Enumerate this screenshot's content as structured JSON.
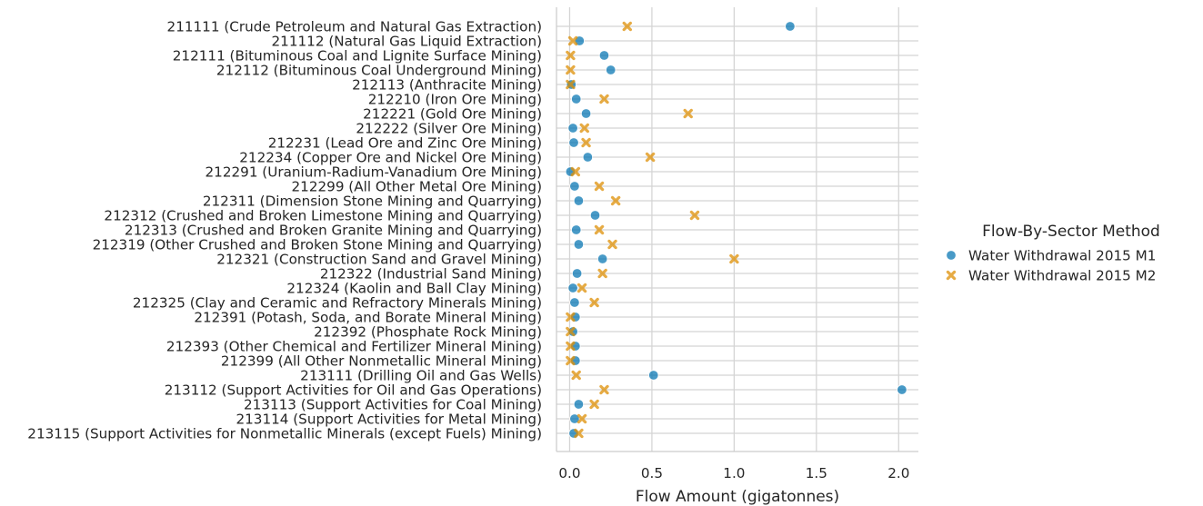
{
  "chart_data": {
    "type": "scatter",
    "orientation": "horizontal",
    "xlabel": "Flow Amount (gigatonnes)",
    "xlim": [
      -0.08,
      2.12
    ],
    "xticks": [
      0.0,
      0.5,
      1.0,
      1.5,
      2.0
    ],
    "xtick_labels": [
      "0.0",
      "0.5",
      "1.0",
      "1.5",
      "2.0"
    ],
    "grid": true,
    "legend_position": "right",
    "legend_title": "Flow-By-Sector Method",
    "categories": [
      "211111 (Crude Petroleum and Natural Gas Extraction)",
      "211112 (Natural Gas Liquid Extraction)",
      "212111 (Bituminous Coal and Lignite Surface Mining)",
      "212112 (Bituminous Coal Underground Mining)",
      "212113 (Anthracite Mining)",
      "212210 (Iron Ore Mining)",
      "212221 (Gold Ore Mining)",
      "212222 (Silver Ore Mining)",
      "212231 (Lead Ore and Zinc Ore Mining)",
      "212234 (Copper Ore and Nickel Ore Mining)",
      "212291 (Uranium-Radium-Vanadium Ore Mining)",
      "212299 (All Other Metal Ore Mining)",
      "212311 (Dimension Stone Mining and Quarrying)",
      "212312 (Crushed and Broken Limestone Mining and Quarrying)",
      "212313 (Crushed and Broken Granite Mining and Quarrying)",
      "212319 (Other Crushed and Broken Stone Mining and Quarrying)",
      "212321 (Construction Sand and Gravel Mining)",
      "212322 (Industrial Sand Mining)",
      "212324 (Kaolin and Ball Clay Mining)",
      "212325 (Clay and Ceramic and Refractory Minerals Mining)",
      "212391 (Potash, Soda, and Borate Mineral Mining)",
      "212392 (Phosphate Rock Mining)",
      "212393 (Other Chemical and Fertilizer Mineral Mining)",
      "212399 (All Other Nonmetallic Mineral Mining)",
      "213111 (Drilling Oil and Gas Wells)",
      "213112 (Support Activities for Oil and Gas Operations)",
      "213113 (Support Activities for Coal Mining)",
      "213114 (Support Activities for Metal Mining)",
      "213115 (Support Activities for Nonmetallic Minerals (except Fuels) Mining)"
    ],
    "series": [
      {
        "name": "Water Withdrawal 2015 M1",
        "color": "#0173b2",
        "marker": "circle",
        "values": [
          1.34,
          0.06,
          0.21,
          0.25,
          0.01,
          0.04,
          0.1,
          0.02,
          0.025,
          0.11,
          0.005,
          0.03,
          0.055,
          0.155,
          0.04,
          0.055,
          0.2,
          0.045,
          0.02,
          0.03,
          0.035,
          0.02,
          0.035,
          0.035,
          0.51,
          2.02,
          0.055,
          0.03,
          0.025
        ]
      },
      {
        "name": "Water Withdrawal 2015 M2",
        "color": "#de8f05",
        "marker": "x",
        "values": [
          0.35,
          0.02,
          0.005,
          0.005,
          0.005,
          0.21,
          0.72,
          0.09,
          0.1,
          0.49,
          0.035,
          0.18,
          0.28,
          0.76,
          0.18,
          0.26,
          1.0,
          0.2,
          0.075,
          0.15,
          0.005,
          0.005,
          0.005,
          0.005,
          0.04,
          0.21,
          0.15,
          0.075,
          0.055
        ]
      }
    ]
  }
}
